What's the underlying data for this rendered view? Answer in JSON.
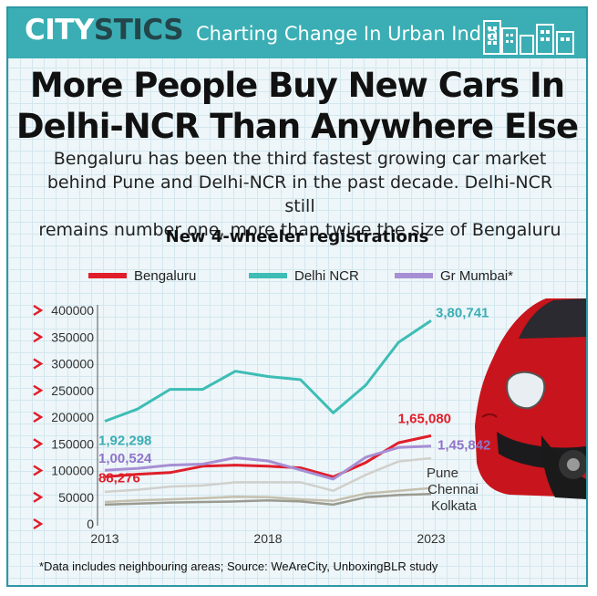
{
  "banner": {
    "logo_part1": "CITY",
    "logo_part2": "STICS",
    "tagline": "Charting Change In Urban India"
  },
  "headline": {
    "line1": "More People Buy New Cars In",
    "line2": "Delhi-NCR Than Anywhere Else"
  },
  "subtitle": {
    "line1": "Bengaluru has been the third fastest growing car market",
    "line2": "behind Pune and Delhi-NCR in the past decade. Delhi-NCR still",
    "line3": "remains number one, more than twice the size of Bengaluru"
  },
  "footnote": "*Data includes neighbouring areas; Source: WeAreCity, UnboxingBLR study",
  "chart_data": {
    "type": "line",
    "title": "New 4-wheeler registrations",
    "xlabel": "",
    "ylabel": "",
    "x": [
      2013,
      2014,
      2015,
      2016,
      2017,
      2018,
      2019,
      2020,
      2021,
      2022,
      2023
    ],
    "xticks": [
      2013,
      2018,
      2023
    ],
    "xtick_labels": [
      "2013",
      "2018",
      "2023"
    ],
    "ylim": [
      0,
      400000
    ],
    "yticks": [
      0,
      50000,
      100000,
      150000,
      200000,
      250000,
      300000,
      350000,
      400000
    ],
    "ytick_labels": [
      "0",
      "50000",
      "100000",
      "150000",
      "200000",
      "250000",
      "300000",
      "350000",
      "400000"
    ],
    "grid": false,
    "legend_position": "top",
    "legend": [
      "Bengaluru",
      "Delhi NCR",
      "Gr Mumbai*"
    ],
    "series": [
      {
        "name": "Bengaluru",
        "color": "#e01e2a",
        "in_legend": true,
        "values": [
          88276,
          93000,
          96000,
          108000,
          110000,
          108000,
          105000,
          88000,
          115000,
          152000,
          165080
        ],
        "start_label": "88,276",
        "end_label": "1,65,080"
      },
      {
        "name": "Delhi NCR",
        "color": "#3dbdb5",
        "in_legend": true,
        "values": [
          192298,
          215000,
          252000,
          252000,
          286000,
          276000,
          270000,
          208000,
          260000,
          340000,
          380741
        ],
        "start_label": "1,92,298",
        "end_label": "3,80,741"
      },
      {
        "name": "Gr Mumbai*",
        "color": "#a68fd4",
        "in_legend": true,
        "values": [
          100524,
          104000,
          110000,
          112000,
          124000,
          118000,
          101000,
          84000,
          125000,
          143000,
          145842
        ],
        "start_label": "1,00,524",
        "end_label": "1,45,842"
      },
      {
        "name": "Pune",
        "color": "#d0d0cc",
        "in_legend": false,
        "values": [
          60000,
          64000,
          70000,
          72000,
          78000,
          78000,
          78000,
          62000,
          92000,
          117000,
          123000
        ],
        "end_label": "Pune"
      },
      {
        "name": "Chennai",
        "color": "#c4bfae",
        "in_legend": false,
        "values": [
          41000,
          44000,
          46000,
          48000,
          51000,
          50000,
          46000,
          43000,
          57000,
          62000,
          67000
        ],
        "end_label": "Chennai"
      },
      {
        "name": "Kolkata",
        "color": "#9a9a90",
        "in_legend": false,
        "values": [
          36000,
          38000,
          40000,
          41000,
          42000,
          44000,
          42000,
          36000,
          50000,
          54000,
          56000
        ],
        "end_label": "Kolkata"
      }
    ]
  }
}
